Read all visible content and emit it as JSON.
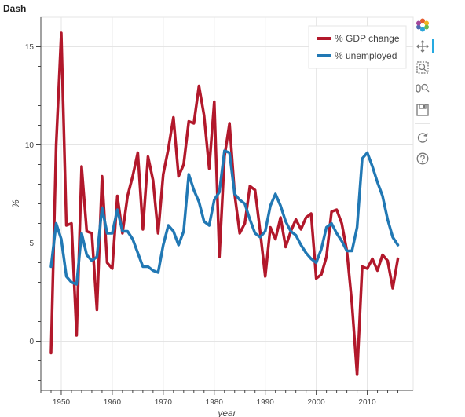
{
  "chart_data": {
    "type": "line",
    "title": "Dash",
    "xlabel": "year",
    "ylabel": "%",
    "xlim": [
      1946,
      2019
    ],
    "ylim": [
      -2.5,
      16.5
    ],
    "xticks": [
      1950,
      1960,
      1970,
      1980,
      1990,
      2000,
      2010
    ],
    "yticks": [
      0,
      5,
      10,
      15
    ],
    "grid": true,
    "legend_position": "top-right",
    "x": [
      1948,
      1949,
      1950,
      1951,
      1952,
      1953,
      1954,
      1955,
      1956,
      1957,
      1958,
      1959,
      1960,
      1961,
      1962,
      1963,
      1964,
      1965,
      1966,
      1967,
      1968,
      1969,
      1970,
      1971,
      1972,
      1973,
      1974,
      1975,
      1976,
      1977,
      1978,
      1979,
      1980,
      1981,
      1982,
      1983,
      1984,
      1985,
      1986,
      1987,
      1988,
      1989,
      1990,
      1991,
      1992,
      1993,
      1994,
      1995,
      1996,
      1997,
      1998,
      1999,
      2000,
      2001,
      2002,
      2003,
      2004,
      2005,
      2006,
      2007,
      2008,
      2009,
      2010,
      2011,
      2012,
      2013,
      2014,
      2015,
      2016
    ],
    "series": [
      {
        "name": "% GDP change",
        "color": "#b2182b",
        "values": [
          -0.6,
          10.0,
          15.7,
          5.9,
          6.0,
          0.3,
          8.9,
          5.6,
          5.5,
          1.6,
          8.4,
          4.0,
          3.7,
          7.4,
          5.5,
          7.4,
          8.4,
          9.6,
          5.7,
          9.4,
          8.2,
          5.5,
          8.5,
          9.8,
          11.4,
          8.4,
          9.0,
          11.2,
          11.1,
          13.0,
          11.5,
          8.8,
          12.2,
          4.3,
          9.4,
          11.1,
          7.5,
          5.5,
          6.0,
          7.9,
          7.7,
          5.6,
          3.3,
          5.8,
          5.2,
          6.3,
          4.8,
          5.6,
          6.2,
          5.7,
          6.3,
          6.5,
          3.2,
          3.4,
          4.3,
          6.6,
          6.7,
          6.0,
          4.6,
          1.9,
          -1.7,
          3.8,
          3.7,
          4.2,
          3.6,
          4.4,
          4.1,
          2.7,
          4.2
        ]
      },
      {
        "name": "% unemployed",
        "color": "#2178b4",
        "values": [
          3.8,
          6.0,
          5.2,
          3.3,
          3.0,
          2.9,
          5.5,
          4.4,
          4.1,
          4.3,
          6.8,
          5.5,
          5.5,
          6.7,
          5.6,
          5.6,
          5.2,
          4.5,
          3.8,
          3.8,
          3.6,
          3.5,
          4.9,
          5.9,
          5.6,
          4.9,
          5.6,
          8.5,
          7.7,
          7.1,
          6.1,
          5.9,
          7.2,
          7.6,
          9.7,
          9.6,
          7.5,
          7.2,
          7.0,
          6.2,
          5.5,
          5.3,
          5.6,
          6.9,
          7.5,
          6.9,
          6.1,
          5.6,
          5.4,
          4.9,
          4.5,
          4.2,
          4.0,
          4.7,
          5.8,
          6.0,
          5.5,
          5.1,
          4.6,
          4.6,
          5.8,
          9.3,
          9.6,
          8.9,
          8.1,
          7.4,
          6.2,
          5.3,
          4.9
        ]
      }
    ]
  },
  "toolbar": {
    "tools": [
      "bokeh-logo-icon",
      "pan-icon",
      "box-zoom-icon",
      "wheel-zoom-icon",
      "save-icon",
      "reset-icon",
      "help-icon"
    ]
  }
}
